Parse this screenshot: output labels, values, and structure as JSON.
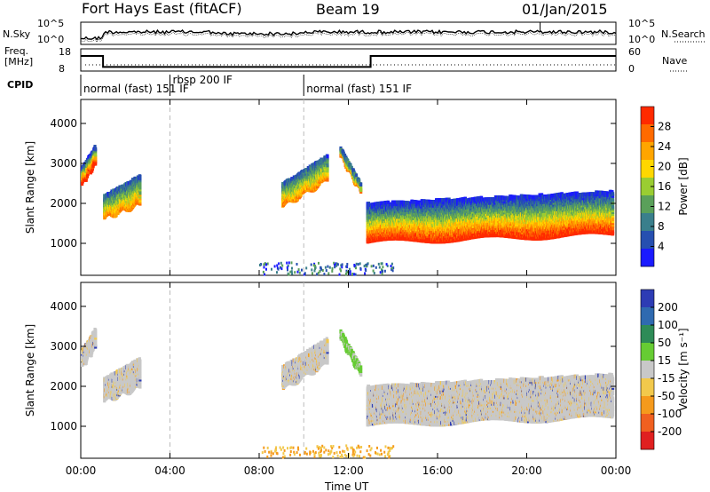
{
  "header": {
    "station": "Fort Hays East (fitACF)",
    "beam": "Beam 19",
    "date": "01/Jan/2015"
  },
  "top_panels": {
    "nsky_label": "N.Sky",
    "nsearch_label": "N.Search",
    "counts_ticks": [
      "10^5",
      "10^0"
    ],
    "freq_label_line1": "Freq.",
    "freq_label_line2": "[MHz]",
    "freq_ticks": [
      "18",
      "8"
    ],
    "nave_label": "Nave",
    "nave_ticks": [
      "60",
      "0"
    ],
    "cpid_label": "CPID"
  },
  "cpid_segments": [
    {
      "label": "normal (fast) 151 IF",
      "start_hour": 0.0
    },
    {
      "label": "rbsp 200 IF",
      "start_hour": 4.0
    },
    {
      "label": "normal (fast) 151 IF",
      "start_hour": 10.0
    }
  ],
  "frequency_trace": [
    {
      "hour": 0.0,
      "mhz": 16.5
    },
    {
      "hour": 1.0,
      "mhz": 10.3
    },
    {
      "hour": 13.0,
      "mhz": 16.5
    },
    {
      "hour": 24.0,
      "mhz": 16.5
    }
  ],
  "chart_data": [
    {
      "type": "heatmap",
      "name": "power",
      "ylabel": "Slant Range [km]",
      "xlabel": "Time UT",
      "xlim": [
        0,
        24
      ],
      "ylim": [
        200,
        4600
      ],
      "yticks": [
        "1000",
        "2000",
        "3000",
        "4000"
      ],
      "xticks": [
        "00:00",
        "04:00",
        "08:00",
        "12:00",
        "16:00",
        "20:00",
        "00:00"
      ],
      "colorbar": {
        "label": "Power [dB]",
        "ticks": [
          "4",
          "8",
          "12",
          "16",
          "20",
          "24",
          "28"
        ],
        "colors": [
          "#1a1aff",
          "#264fb0",
          "#3a7f8c",
          "#5aa05a",
          "#9acd32",
          "#ffd700",
          "#ffa500",
          "#ff6a00",
          "#ff2a00"
        ]
      },
      "scatter_regions": [
        {
          "t0": 0.0,
          "t1": 0.6,
          "r_bottom": [
            2500,
            3000
          ],
          "r_top": [
            2900,
            3450
          ],
          "level": "high"
        },
        {
          "t0": 1.0,
          "t1": 2.6,
          "r_bottom": [
            1650,
            2000
          ],
          "r_top": [
            2200,
            2700
          ],
          "level": "mid"
        },
        {
          "t0": 9.0,
          "t1": 11.0,
          "r_bottom": [
            1950,
            2600
          ],
          "r_top": [
            2500,
            3200
          ],
          "level": "mid"
        },
        {
          "t0": 11.6,
          "t1": 12.5,
          "r_bottom": [
            3200,
            2300
          ],
          "r_top": [
            3400,
            2500
          ],
          "level": "mid"
        },
        {
          "t0": 12.8,
          "t1": 23.8,
          "r_bottom": [
            1050,
            1250
          ],
          "r_top": [
            2000,
            2300
          ],
          "level": "high"
        }
      ]
    },
    {
      "type": "heatmap",
      "name": "velocity",
      "ylabel": "Slant Range [km]",
      "xlabel": "Time UT",
      "xlim": [
        0,
        24
      ],
      "ylim": [
        200,
        4600
      ],
      "yticks": [
        "1000",
        "2000",
        "3000",
        "4000"
      ],
      "xticks": [
        "00:00",
        "04:00",
        "08:00",
        "12:00",
        "16:00",
        "20:00",
        "00:00"
      ],
      "colorbar": {
        "label": "Velocity [m s⁻¹]",
        "ticks": [
          "200",
          "100",
          "50",
          "15",
          "-15",
          "-50",
          "-100",
          "-200"
        ],
        "colors": [
          "#2d3cb4",
          "#2f6ab0",
          "#2e8b57",
          "#66cc33",
          "#c8c8c8",
          "#f2c94c",
          "#f59a1c",
          "#f06020",
          "#e02020"
        ]
      },
      "scatter_regions": [
        {
          "t0": 0.0,
          "t1": 0.6,
          "r_bottom": [
            2500,
            3000
          ],
          "r_top": [
            2900,
            3450
          ],
          "level": "ground"
        },
        {
          "t0": 1.0,
          "t1": 2.6,
          "r_bottom": [
            1650,
            2000
          ],
          "r_top": [
            2200,
            2700
          ],
          "level": "ground"
        },
        {
          "t0": 9.0,
          "t1": 11.0,
          "r_bottom": [
            1950,
            2600
          ],
          "r_top": [
            2500,
            3200
          ],
          "level": "ground"
        },
        {
          "t0": 11.6,
          "t1": 12.5,
          "r_bottom": [
            3200,
            2300
          ],
          "r_top": [
            3400,
            2500
          ],
          "level": "green"
        },
        {
          "t0": 12.8,
          "t1": 23.8,
          "r_bottom": [
            1050,
            1250
          ],
          "r_top": [
            2000,
            2300
          ],
          "level": "ground"
        }
      ]
    }
  ]
}
